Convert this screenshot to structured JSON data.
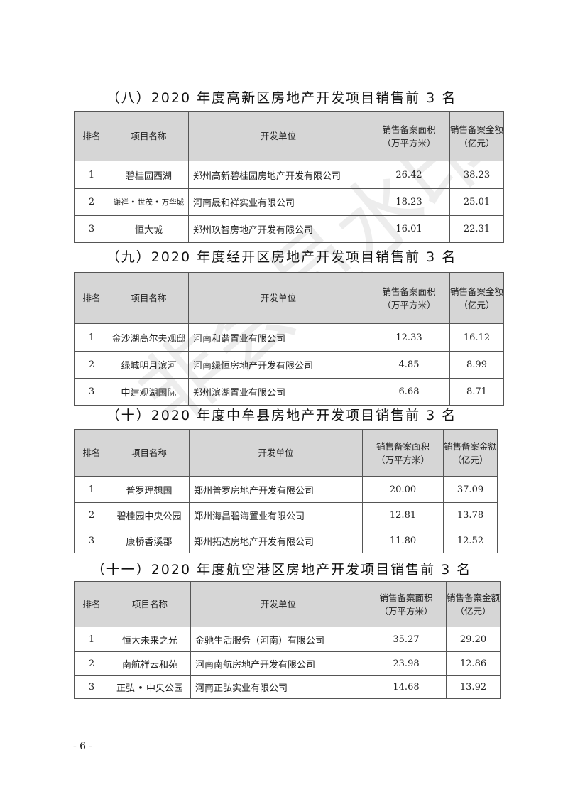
{
  "headers": {
    "rank": "排名",
    "project": "项目名称",
    "developer": "开发单位",
    "area_l1": "销售备案面积",
    "area_l2": "（万平方米）",
    "amount_l1": "销售备案金额",
    "amount_l2": "（亿元）"
  },
  "sections": [
    {
      "title": "（八）2020 年度高新区房地产开发项目销售前 3 名",
      "rows": [
        {
          "rank": "1",
          "project": "碧桂园西湖",
          "developer": "郑州高新碧桂园房地产开发有限公司",
          "area": "26.42",
          "amount": "38.23"
        },
        {
          "rank": "2",
          "project": "谦祥 • 世茂 • 万华城",
          "developer": "河南晟和祥实业有限公司",
          "area": "18.23",
          "amount": "25.01"
        },
        {
          "rank": "3",
          "project": "恒大城",
          "developer": "郑州玖智房地产开发有限公司",
          "area": "16.01",
          "amount": "22.31"
        }
      ]
    },
    {
      "title": "（九）2020 年度经开区房地产开发项目销售前 3 名",
      "rows": [
        {
          "rank": "1",
          "project": "金沙湖高尔夫观邸",
          "developer": "河南和谐置业有限公司",
          "area": "12.33",
          "amount": "16.12"
        },
        {
          "rank": "2",
          "project": "绿城明月滨河",
          "developer": "河南绿恒房地产开发有限公司",
          "area": "4.85",
          "amount": "8.99"
        },
        {
          "rank": "3",
          "project": "中建观湖国际",
          "developer": "郑州滨湖置业有限公司",
          "area": "6.68",
          "amount": "8.71"
        }
      ]
    },
    {
      "title": "（十）2020 年度中牟县房地产开发项目销售前 3 名",
      "rows": [
        {
          "rank": "1",
          "project": "普罗理想国",
          "developer": "郑州普罗房地产开发有限公司",
          "area": "20.00",
          "amount": "37.09"
        },
        {
          "rank": "2",
          "project": "碧桂园中央公园",
          "developer": "郑州海昌碧海置业有限公司",
          "area": "12.81",
          "amount": "13.78"
        },
        {
          "rank": "3",
          "project": "康桥香溪郡",
          "developer": "郑州拓达房地产开发有限公司",
          "area": "11.80",
          "amount": "12.52"
        }
      ]
    },
    {
      "title": "（十一）2020 年度航空港区房地产开发项目销售前 3 名",
      "rows": [
        {
          "rank": "1",
          "project": "恒大未来之光",
          "developer": "金驰生活服务（河南）有限公司",
          "area": "35.27",
          "amount": "29.20"
        },
        {
          "rank": "2",
          "project": "南航祥云和苑",
          "developer": "河南南航房地产开发有限公司",
          "area": "23.98",
          "amount": "12.86"
        },
        {
          "rank": "3",
          "project": "正弘 • 中央公园",
          "developer": "河南正弘实业有限公司",
          "area": "14.68",
          "amount": "13.92"
        }
      ]
    }
  ],
  "page_number": "- 6 -",
  "watermark": "非会员水印"
}
